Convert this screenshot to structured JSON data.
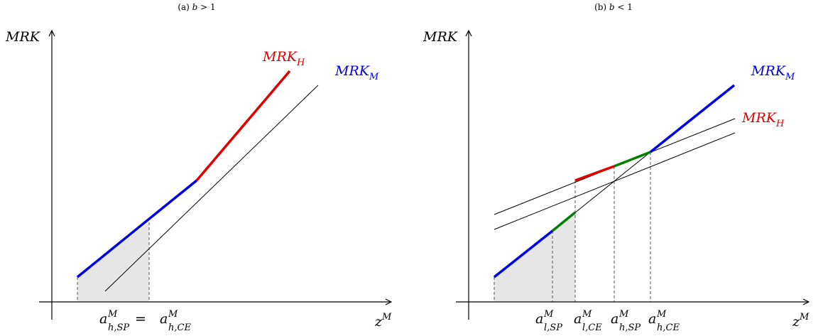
{
  "panels": [
    {
      "caption_prefix": "(a) ",
      "caption_var": "b",
      "caption_rel": " > 1",
      "y_axis_label": "MRK",
      "x_axis_var": "z",
      "x_axis_sup": "M",
      "curve_labels": [
        {
          "base": "MRK",
          "sub": "H",
          "color": "#e00000"
        },
        {
          "base": "MRK",
          "sub": "M",
          "color": "#0000e6"
        }
      ],
      "x_tick_label": {
        "left": {
          "base": "a",
          "sup": "M",
          "sub": "h,SP"
        },
        "eq": " = ",
        "right": {
          "base": "a",
          "sup": "M",
          "sub": "h,CE"
        }
      }
    },
    {
      "caption_prefix": "(b) ",
      "caption_var": "b",
      "caption_rel": " < 1",
      "y_axis_label": "MRK",
      "x_axis_var": "z",
      "x_axis_sup": "M",
      "curve_labels": [
        {
          "base": "MRK",
          "sub": "M",
          "color": "#0000e6"
        },
        {
          "base": "MRK",
          "sub": "H",
          "color": "#e00000"
        }
      ],
      "x_tick_labels": [
        {
          "base": "a",
          "sup": "M",
          "sub": "l,SP"
        },
        {
          "base": "a",
          "sup": "M",
          "sub": "l,CE"
        },
        {
          "base": "a",
          "sup": "M",
          "sub": "h,SP"
        },
        {
          "base": "a",
          "sup": "M",
          "sub": "h,CE"
        }
      ]
    }
  ],
  "colors": {
    "mrk_m": "#0000e6",
    "mrk_h": "#e00000",
    "segment_green": "#008000",
    "shade": "#e6e6e6"
  }
}
